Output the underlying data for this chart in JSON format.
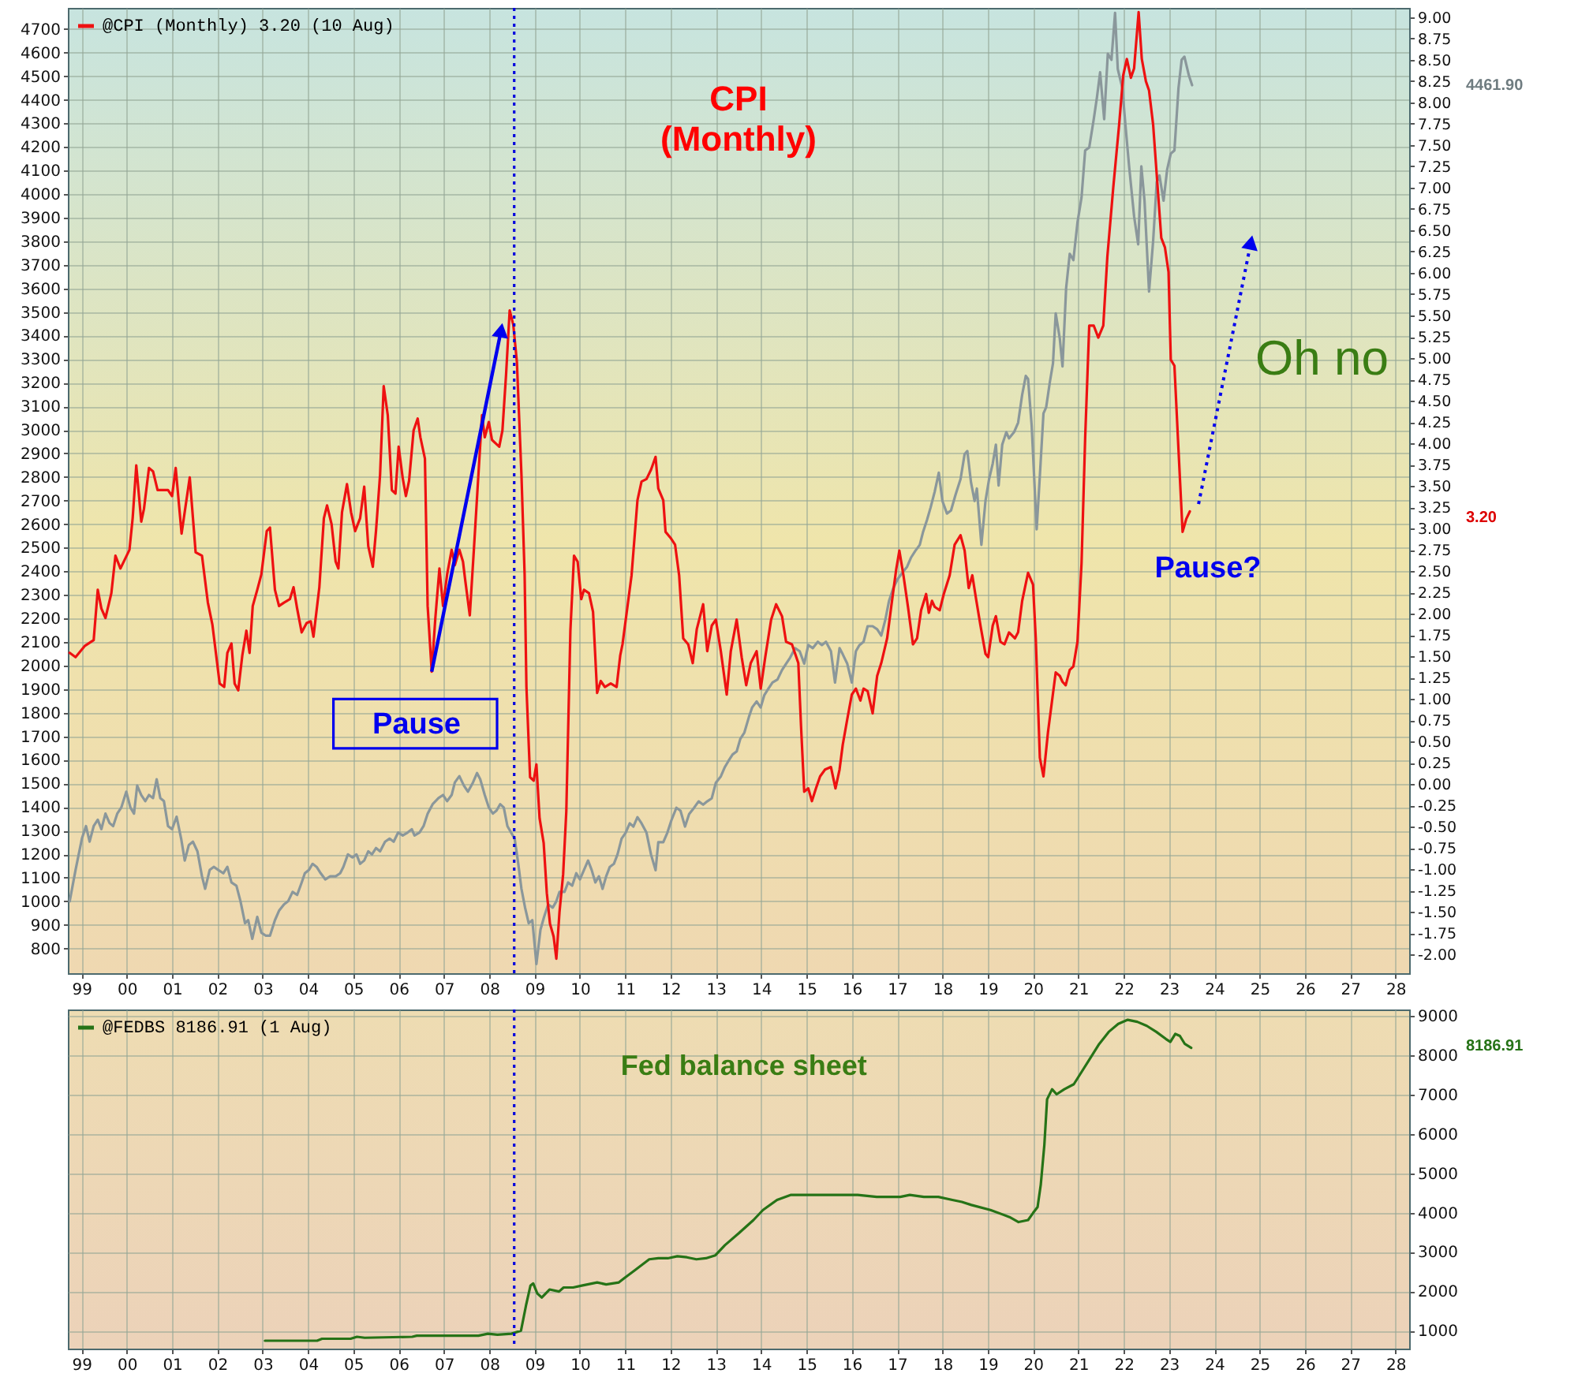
{
  "chart_data": [
    {
      "type": "line",
      "xlim": [
        1998.7,
        2028.3
      ],
      "xticks": [
        {
          "value": 1999,
          "label": "99"
        },
        {
          "value": 2000,
          "label": "00"
        },
        {
          "value": 2001,
          "label": "01"
        },
        {
          "value": 2002,
          "label": "02"
        },
        {
          "value": 2003,
          "label": "03"
        },
        {
          "value": 2004,
          "label": "04"
        },
        {
          "value": 2005,
          "label": "05"
        },
        {
          "value": 2006,
          "label": "06"
        },
        {
          "value": 2007,
          "label": "07"
        },
        {
          "value": 2008,
          "label": "08"
        },
        {
          "value": 2009,
          "label": "09"
        },
        {
          "value": 2010,
          "label": "10"
        },
        {
          "value": 2011,
          "label": "11"
        },
        {
          "value": 2012,
          "label": "12"
        },
        {
          "value": 2013,
          "label": "13"
        },
        {
          "value": 2014,
          "label": "14"
        },
        {
          "value": 2015,
          "label": "15"
        },
        {
          "value": 2016,
          "label": "16"
        },
        {
          "value": 2017,
          "label": "17"
        },
        {
          "value": 2018,
          "label": "18"
        },
        {
          "value": 2019,
          "label": "19"
        },
        {
          "value": 2020,
          "label": "20"
        },
        {
          "value": 2021,
          "label": "21"
        },
        {
          "value": 2022,
          "label": "22"
        },
        {
          "value": 2023,
          "label": "23"
        },
        {
          "value": 2024,
          "label": "24"
        },
        {
          "value": 2025,
          "label": "25"
        },
        {
          "value": 2026,
          "label": "26"
        },
        {
          "value": 2027,
          "label": "27"
        },
        {
          "value": 2028,
          "label": "28"
        }
      ],
      "y2lim": [
        695,
        4790
      ],
      "y2ticks": [
        800,
        900,
        1000,
        1100,
        1200,
        1300,
        1400,
        1500,
        1600,
        1700,
        1800,
        1900,
        2000,
        2100,
        2200,
        2300,
        2400,
        2500,
        2600,
        2700,
        2800,
        2900,
        3000,
        3100,
        3200,
        3300,
        3400,
        3500,
        3600,
        3700,
        3800,
        3900,
        4000,
        4100,
        4200,
        4300,
        4400,
        4500,
        4600,
        4700
      ],
      "ylim": [
        -2.22,
        9.11
      ],
      "yticks": [
        {
          "value": -2,
          "label": "-2.00"
        },
        {
          "value": -1.75,
          "label": "-1.75"
        },
        {
          "value": -1.5,
          "label": "-1.50"
        },
        {
          "value": -1.25,
          "label": "-1.25"
        },
        {
          "value": -1,
          "label": "-1.00"
        },
        {
          "value": -0.75,
          "label": "-0.75"
        },
        {
          "value": -0.5,
          "label": "-0.50"
        },
        {
          "value": -0.25,
          "label": "-0.25"
        },
        {
          "value": 0,
          "label": "0.00"
        },
        {
          "value": 0.25,
          "label": "0.25"
        },
        {
          "value": 0.5,
          "label": "0.50"
        },
        {
          "value": 0.75,
          "label": "0.75"
        },
        {
          "value": 1,
          "label": "1.00"
        },
        {
          "value": 1.25,
          "label": "1.25"
        },
        {
          "value": 1.5,
          "label": "1.50"
        },
        {
          "value": 1.75,
          "label": "1.75"
        },
        {
          "value": 2,
          "label": "2.00"
        },
        {
          "value": 2.25,
          "label": "2.25"
        },
        {
          "value": 2.5,
          "label": "2.50"
        },
        {
          "value": 2.75,
          "label": "2.75"
        },
        {
          "value": 3,
          "label": "3.00"
        },
        {
          "value": 3.25,
          "label": "3.25"
        },
        {
          "value": 3.5,
          "label": "3.50"
        },
        {
          "value": 3.75,
          "label": "3.75"
        },
        {
          "value": 4,
          "label": "4.00"
        },
        {
          "value": 4.25,
          "label": "4.25"
        },
        {
          "value": 4.5,
          "label": "4.50"
        },
        {
          "value": 4.75,
          "label": "4.75"
        },
        {
          "value": 5,
          "label": "5.00"
        },
        {
          "value": 5.25,
          "label": "5.25"
        },
        {
          "value": 5.5,
          "label": "5.50"
        },
        {
          "value": 5.75,
          "label": "5.75"
        },
        {
          "value": 6,
          "label": "6.00"
        },
        {
          "value": 6.25,
          "label": "6.25"
        },
        {
          "value": 6.5,
          "label": "6.50"
        },
        {
          "value": 6.75,
          "label": "6.75"
        },
        {
          "value": 7,
          "label": "7.00"
        },
        {
          "value": 7.25,
          "label": "7.25"
        },
        {
          "value": 7.5,
          "label": "7.50"
        },
        {
          "value": 7.75,
          "label": "7.75"
        },
        {
          "value": 8,
          "label": "8.00"
        },
        {
          "value": 8.25,
          "label": "8.25"
        },
        {
          "value": 8.5,
          "label": "8.50"
        },
        {
          "value": 8.75,
          "label": "8.75"
        },
        {
          "value": 9,
          "label": "9.00"
        }
      ],
      "grid": true,
      "legend": "top left",
      "series": [
        {
          "color": "#8a979b",
          "axis": "y2",
          "x": [
            1998.74,
            1998.87,
            1999.01,
            1999.1,
            1999.18,
            1999.27,
            1999.36,
            1999.44,
            1999.53,
            1999.62,
            1999.7,
            1999.79,
            1999.88,
            1999.99,
            2000.08,
            2000.16,
            2000.23,
            2000.32,
            2000.41,
            2000.49,
            2000.58,
            2000.66,
            2000.74,
            2000.82,
            2000.91,
            2001.0,
            2001.1,
            2001.2,
            2001.28,
            2001.37,
            2001.46,
            2001.56,
            2001.66,
            2001.73,
            2001.83,
            2001.92,
            2002.02,
            2002.13,
            2002.22,
            2002.31,
            2002.42,
            2002.51,
            2002.61,
            2002.68,
            2002.77,
            2002.88,
            2002.97,
            2003.07,
            2003.16,
            2003.27,
            2003.36,
            2003.47,
            2003.56,
            2003.66,
            2003.76,
            2003.86,
            2003.93,
            2004.02,
            2004.1,
            2004.19,
            2004.28,
            2004.38,
            2004.49,
            2004.61,
            2004.71,
            2004.78,
            2004.88,
            2004.98,
            2005.07,
            2005.15,
            2005.24,
            2005.33,
            2005.41,
            2005.5,
            2005.59,
            2005.7,
            2005.8,
            2005.89,
            2005.99,
            2006.09,
            2006.2,
            2006.29,
            2006.35,
            2006.46,
            2006.55,
            2006.64,
            2006.75,
            2006.88,
            2006.98,
            2007.07,
            2007.17,
            2007.24,
            2007.34,
            2007.44,
            2007.53,
            2007.64,
            2007.73,
            2007.8,
            2007.9,
            2007.99,
            2008.08,
            2008.16,
            2008.24,
            2008.32,
            2008.4,
            2008.48,
            2008.56,
            2008.64,
            2008.71,
            2008.79,
            2008.87,
            2008.95,
            2009.04,
            2009.13,
            2009.21,
            2009.3,
            2009.4,
            2009.48,
            2009.55,
            2009.66,
            2009.74,
            2009.83,
            2009.92,
            2010.0,
            2010.09,
            2010.18,
            2010.26,
            2010.34,
            2010.42,
            2010.5,
            2010.58,
            2010.66,
            2010.75,
            2010.83,
            2010.92,
            2011.01,
            2011.1,
            2011.18,
            2011.27,
            2011.36,
            2011.47,
            2011.57,
            2011.67,
            2011.73,
            2011.84,
            2011.93,
            2012.02,
            2012.13,
            2012.22,
            2012.32,
            2012.41,
            2012.52,
            2012.62,
            2012.72,
            2012.81,
            2012.91,
            2013.0,
            2013.11,
            2013.2,
            2013.28,
            2013.37,
            2013.46,
            2013.54,
            2013.63,
            2013.73,
            2013.8,
            2013.9,
            2013.99,
            2014.07,
            2014.16,
            2014.25,
            2014.36,
            2014.46,
            2014.55,
            2014.64,
            2014.75,
            2014.85,
            2014.95,
            2015.04,
            2015.14,
            2015.25,
            2015.34,
            2015.43,
            2015.54,
            2015.63,
            2015.73,
            2015.8,
            2015.9,
            2016.0,
            2016.09,
            2016.17,
            2016.26,
            2016.35,
            2016.46,
            2016.56,
            2016.65,
            2016.74,
            2016.82,
            2016.91,
            2017.01,
            2017.11,
            2017.22,
            2017.31,
            2017.4,
            2017.5,
            2017.57,
            2017.66,
            2017.74,
            2017.83,
            2017.92,
            2018.0,
            2018.1,
            2018.19,
            2018.29,
            2018.4,
            2018.49,
            2018.55,
            2018.63,
            2018.71,
            2018.76,
            2018.86,
            2018.95,
            2019.03,
            2019.11,
            2019.18,
            2019.24,
            2019.32,
            2019.41,
            2019.47,
            2019.58,
            2019.67,
            2019.76,
            2019.84,
            2019.89,
            2019.97,
            2020.08,
            2020.15,
            2020.23,
            2020.29,
            2020.37,
            2020.44,
            2020.5,
            2020.59,
            2020.65,
            2020.73,
            2020.81,
            2020.89,
            2020.98,
            2021.07,
            2021.15,
            2021.24,
            2021.34,
            2021.41,
            2021.48,
            2021.57,
            2021.65,
            2021.73,
            2021.81,
            2021.87,
            2021.97,
            2022.04,
            2022.12,
            2022.23,
            2022.32,
            2022.39,
            2022.46,
            2022.56,
            2022.65,
            2022.73,
            2022.79,
            2022.88,
            2022.96,
            2023.04,
            2023.12,
            2023.21,
            2023.28,
            2023.34,
            2023.44,
            2023.51
          ],
          "values": [
            1000,
            1133,
            1266,
            1319,
            1253,
            1319,
            1346,
            1306,
            1372,
            1332,
            1319,
            1372,
            1398,
            1465,
            1398,
            1372,
            1491,
            1451,
            1425,
            1451,
            1438,
            1518,
            1438,
            1425,
            1319,
            1306,
            1359,
            1266,
            1173,
            1239,
            1253,
            1212,
            1106,
            1053,
            1133,
            1146,
            1133,
            1119,
            1146,
            1080,
            1066,
            1000,
            907,
            920,
            841,
            934,
            867,
            854,
            854,
            920,
            960,
            987,
            1000,
            1040,
            1027,
            1080,
            1119,
            1133,
            1159,
            1146,
            1119,
            1093,
            1106,
            1106,
            1119,
            1146,
            1199,
            1186,
            1199,
            1159,
            1173,
            1212,
            1199,
            1226,
            1212,
            1253,
            1266,
            1253,
            1292,
            1279,
            1292,
            1306,
            1279,
            1292,
            1319,
            1372,
            1412,
            1438,
            1451,
            1425,
            1451,
            1504,
            1531,
            1491,
            1465,
            1504,
            1544,
            1518,
            1451,
            1398,
            1372,
            1385,
            1412,
            1398,
            1319,
            1292,
            1266,
            1159,
            1053,
            973,
            907,
            920,
            734,
            880,
            934,
            987,
            973,
            1000,
            1040,
            1040,
            1080,
            1066,
            1119,
            1093,
            1133,
            1173,
            1133,
            1080,
            1106,
            1053,
            1106,
            1146,
            1159,
            1199,
            1266,
            1291,
            1331,
            1317,
            1357,
            1331,
            1291,
            1198,
            1132,
            1251,
            1251,
            1291,
            1344,
            1397,
            1384,
            1317,
            1370,
            1397,
            1424,
            1410,
            1424,
            1437,
            1503,
            1530,
            1570,
            1596,
            1623,
            1636,
            1689,
            1716,
            1782,
            1822,
            1848,
            1822,
            1875,
            1902,
            1928,
            1941,
            1981,
            2008,
            2034,
            2074,
            2061,
            2008,
            2087,
            2074,
            2101,
            2087,
            2101,
            2061,
            1928,
            2074,
            2048,
            2008,
            1928,
            2061,
            2087,
            2101,
            2167,
            2167,
            2154,
            2127,
            2194,
            2273,
            2326,
            2366,
            2393,
            2419,
            2459,
            2486,
            2512,
            2565,
            2618,
            2671,
            2738,
            2818,
            2698,
            2645,
            2658,
            2725,
            2791,
            2897,
            2910,
            2778,
            2698,
            2751,
            2512,
            2698,
            2791,
            2857,
            2937,
            2764,
            2937,
            2990,
            2964,
            2990,
            3030,
            3149,
            3229,
            3216,
            3017,
            2578,
            2804,
            3070,
            3096,
            3202,
            3282,
            3494,
            3388,
            3269,
            3601,
            3747,
            3720,
            3879,
            3986,
            4185,
            4198,
            4318,
            4410,
            4517,
            4318,
            4596,
            4570,
            4769,
            4530,
            4450,
            4291,
            4118,
            3906,
            3787,
            4118,
            3972,
            3587,
            3800,
            4052,
            4079,
            3972,
            4105,
            4172,
            4185,
            4450,
            4570,
            4583,
            4503,
            4461.9
          ]
        },
        {
          "name": "@CPI (Monthly) 3.20 (10 Aug)",
          "color": "#ee1111",
          "x": [
            1998.74,
            1998.87,
            1999.07,
            1999.27,
            1999.36,
            1999.44,
            1999.53,
            1999.66,
            1999.75,
            1999.86,
            2000.06,
            2000.13,
            2000.21,
            2000.32,
            2000.38,
            2000.49,
            2000.58,
            2000.68,
            2000.78,
            2000.91,
            2001.0,
            2001.08,
            2001.21,
            2001.39,
            2001.52,
            2001.66,
            2001.79,
            2001.89,
            2002.05,
            2002.15,
            2002.22,
            2002.31,
            2002.38,
            2002.46,
            2002.55,
            2002.64,
            2002.71,
            2002.78,
            2002.88,
            2002.97,
            2003.09,
            2003.16,
            2003.27,
            2003.36,
            2003.47,
            2003.6,
            2003.68,
            2003.76,
            2003.86,
            2003.97,
            2004.06,
            2004.12,
            2004.25,
            2004.35,
            2004.42,
            2004.52,
            2004.61,
            2004.67,
            2004.75,
            2004.86,
            2004.95,
            2005.04,
            2005.15,
            2005.24,
            2005.33,
            2005.43,
            2005.5,
            2005.59,
            2005.67,
            2005.76,
            2005.85,
            2005.93,
            2006.0,
            2006.09,
            2006.16,
            2006.23,
            2006.33,
            2006.42,
            2006.48,
            2006.58,
            2006.64,
            2006.73,
            2006.81,
            2006.9,
            2006.98,
            2007.07,
            2007.17,
            2007.24,
            2007.34,
            2007.42,
            2007.47,
            2007.57,
            2007.66,
            2007.76,
            2007.84,
            2007.9,
            2007.99,
            2008.06,
            2008.14,
            2008.22,
            2008.29,
            2008.37,
            2008.45,
            2008.53,
            2008.61,
            2008.71,
            2008.78,
            2008.82,
            2008.9,
            2008.98,
            2009.04,
            2009.11,
            2009.2,
            2009.27,
            2009.34,
            2009.42,
            2009.48,
            2009.55,
            2009.63,
            2009.7,
            2009.79,
            2009.87,
            2009.95,
            2010.03,
            2010.09,
            2010.2,
            2010.29,
            2010.38,
            2010.46,
            2010.55,
            2010.68,
            2010.81,
            2010.89,
            2010.94,
            2011.14,
            2011.27,
            2011.36,
            2011.47,
            2011.57,
            2011.67,
            2011.73,
            2011.84,
            2011.89,
            2012.0,
            2012.1,
            2012.19,
            2012.28,
            2012.39,
            2012.49,
            2012.58,
            2012.72,
            2012.81,
            2012.91,
            2013.0,
            2013.11,
            2013.24,
            2013.33,
            2013.46,
            2013.57,
            2013.67,
            2013.77,
            2013.9,
            2013.99,
            2014.09,
            2014.22,
            2014.33,
            2014.46,
            2014.55,
            2014.68,
            2014.82,
            2014.88,
            2014.95,
            2015.04,
            2015.12,
            2015.21,
            2015.3,
            2015.41,
            2015.54,
            2015.64,
            2015.73,
            2015.8,
            2015.9,
            2016.0,
            2016.09,
            2016.19,
            2016.26,
            2016.35,
            2016.46,
            2016.56,
            2016.65,
            2016.78,
            2016.87,
            2016.98,
            2017.05,
            2017.14,
            2017.24,
            2017.35,
            2017.44,
            2017.53,
            2017.64,
            2017.7,
            2017.77,
            2017.83,
            2017.94,
            2018.03,
            2018.16,
            2018.27,
            2018.4,
            2018.49,
            2018.58,
            2018.66,
            2018.75,
            2018.84,
            2018.95,
            2019.01,
            2019.11,
            2019.18,
            2019.28,
            2019.37,
            2019.47,
            2019.6,
            2019.67,
            2019.76,
            2019.89,
            2020.0,
            2020.06,
            2020.15,
            2020.23,
            2020.33,
            2020.42,
            2020.5,
            2020.59,
            2020.65,
            2020.72,
            2020.81,
            2020.89,
            2020.98,
            2021.07,
            2021.15,
            2021.24,
            2021.34,
            2021.44,
            2021.55,
            2021.64,
            2021.77,
            2021.9,
            2021.99,
            2022.07,
            2022.16,
            2022.23,
            2022.33,
            2022.4,
            2022.49,
            2022.56,
            2022.65,
            2022.75,
            2022.83,
            2022.91,
            2022.99,
            2023.04,
            2023.12,
            2023.21,
            2023.3,
            2023.38,
            2023.46
          ],
          "values": [
            1.54,
            1.49,
            1.62,
            1.69,
            2.28,
            2.06,
            1.95,
            2.24,
            2.68,
            2.53,
            2.75,
            3.12,
            3.74,
            3.08,
            3.23,
            3.71,
            3.67,
            3.45,
            3.45,
            3.45,
            3.38,
            3.71,
            2.94,
            3.6,
            2.72,
            2.68,
            2.13,
            1.87,
            1.18,
            1.14,
            1.54,
            1.65,
            1.18,
            1.1,
            1.51,
            1.8,
            1.54,
            2.09,
            2.28,
            2.46,
            2.97,
            3.01,
            2.28,
            2.09,
            2.13,
            2.17,
            2.31,
            2.06,
            1.78,
            1.89,
            1.91,
            1.73,
            2.31,
            3.12,
            3.27,
            3.05,
            2.61,
            2.53,
            3.19,
            3.52,
            3.19,
            2.97,
            3.12,
            3.49,
            2.79,
            2.55,
            2.97,
            3.63,
            4.67,
            4.33,
            3.45,
            3.41,
            3.96,
            3.59,
            3.38,
            3.56,
            4.15,
            4.29,
            4.07,
            3.82,
            2.09,
            1.32,
            1.95,
            2.53,
            2.09,
            2.46,
            2.75,
            2.57,
            2.75,
            2.61,
            2.39,
            1.98,
            2.75,
            3.63,
            4.33,
            4.07,
            4.25,
            4.04,
            4.0,
            3.96,
            4.15,
            4.8,
            5.56,
            5.39,
            4.95,
            3.63,
            2.46,
            1.14,
            0.08,
            0.04,
            0.23,
            -0.4,
            -0.69,
            -1.28,
            -1.64,
            -1.79,
            -2.05,
            -1.5,
            -1.06,
            -0.32,
            1.8,
            2.68,
            2.61,
            2.17,
            2.28,
            2.24,
            2.02,
            1.07,
            1.21,
            1.14,
            1.18,
            1.14,
            1.51,
            1.64,
            2.45,
            3.33,
            3.55,
            3.58,
            3.69,
            3.84,
            3.47,
            3.33,
            2.96,
            2.89,
            2.81,
            2.45,
            1.71,
            1.64,
            1.42,
            1.82,
            2.11,
            1.56,
            1.86,
            1.93,
            1.56,
            1.05,
            1.56,
            1.93,
            1.49,
            1.16,
            1.42,
            1.56,
            1.12,
            1.49,
            1.93,
            2.11,
            1.97,
            1.67,
            1.64,
            1.42,
            0.68,
            -0.09,
            -0.05,
            -0.2,
            -0.05,
            0.09,
            0.17,
            0.2,
            -0.05,
            0.17,
            0.46,
            0.76,
            1.05,
            1.12,
            0.98,
            1.12,
            1.09,
            0.83,
            1.27,
            1.42,
            1.71,
            2.08,
            2.52,
            2.74,
            2.45,
            2.08,
            1.64,
            1.71,
            2.04,
            2.23,
            2.01,
            2.15,
            2.08,
            2.04,
            2.23,
            2.45,
            2.81,
            2.92,
            2.74,
            2.3,
            2.45,
            2.15,
            1.86,
            1.53,
            1.49,
            1.86,
            1.97,
            1.67,
            1.64,
            1.78,
            1.71,
            1.78,
            2.15,
            2.48,
            2.34,
            1.71,
            0.31,
            0.09,
            0.61,
            0.98,
            1.31,
            1.27,
            1.2,
            1.16,
            1.34,
            1.38,
            1.67,
            2.59,
            4.06,
            5.38,
            5.38,
            5.24,
            5.38,
            6.19,
            7.0,
            7.74,
            8.32,
            8.51,
            8.29,
            8.4,
            9.06,
            8.51,
            8.25,
            8.14,
            7.74,
            7.0,
            6.41,
            6.3,
            6.01,
            4.98,
            4.91,
            3.92,
            2.96,
            3.11,
            3.2
          ]
        }
      ],
      "ref_lines": [
        {
          "axis": "x",
          "value": 2008.55,
          "color": "#0000dd",
          "line_style": "dotted"
        }
      ],
      "annotations": [
        "CPI\n(Monthly)",
        {
          "text": "Pause",
          "x": 2006.73,
          "y": 1.32
        },
        "Pause?",
        "Oh no",
        "4461.90",
        "3.20"
      ]
    },
    {
      "type": "line",
      "xlim": [
        1998.7,
        2028.3
      ],
      "xticks": [
        {
          "value": 1999,
          "label": "99"
        },
        {
          "value": 2000,
          "label": "00"
        },
        {
          "value": 2001,
          "label": "01"
        },
        {
          "value": 2002,
          "label": "02"
        },
        {
          "value": 2003,
          "label": "03"
        },
        {
          "value": 2004,
          "label": "04"
        },
        {
          "value": 2005,
          "label": "05"
        },
        {
          "value": 2006,
          "label": "06"
        },
        {
          "value": 2007,
          "label": "07"
        },
        {
          "value": 2008,
          "label": "08"
        },
        {
          "value": 2009,
          "label": "09"
        },
        {
          "value": 2010,
          "label": "10"
        },
        {
          "value": 2011,
          "label": "11"
        },
        {
          "value": 2012,
          "label": "12"
        },
        {
          "value": 2013,
          "label": "13"
        },
        {
          "value": 2014,
          "label": "14"
        },
        {
          "value": 2015,
          "label": "15"
        },
        {
          "value": 2016,
          "label": "16"
        },
        {
          "value": 2017,
          "label": "17"
        },
        {
          "value": 2018,
          "label": "18"
        },
        {
          "value": 2019,
          "label": "19"
        },
        {
          "value": 2020,
          "label": "20"
        },
        {
          "value": 2021,
          "label": "21"
        },
        {
          "value": 2022,
          "label": "22"
        },
        {
          "value": 2023,
          "label": "23"
        },
        {
          "value": 2024,
          "label": "24"
        },
        {
          "value": 2025,
          "label": "25"
        },
        {
          "value": 2026,
          "label": "26"
        },
        {
          "value": 2027,
          "label": "27"
        },
        {
          "value": 2028,
          "label": "28"
        }
      ],
      "ylim": [
        545,
        9160
      ],
      "yticks": [
        1000,
        2000,
        3000,
        4000,
        5000,
        6000,
        7000,
        8000,
        9000
      ],
      "grid": true,
      "legend": "top left",
      "series": [
        {
          "name": "@FEDBS 8186.91 (1 Aug)",
          "color": "#267317",
          "x": [
            2003.05,
            2004.2,
            2004.31,
            2004.94,
            2005.08,
            2005.25,
            2006.3,
            2006.4,
            2007.76,
            2007.97,
            2008.18,
            2008.49,
            2008.7,
            2008.81,
            2008.91,
            2008.97,
            2009.06,
            2009.16,
            2009.33,
            2009.54,
            2009.64,
            2009.85,
            2010.06,
            2010.38,
            2010.58,
            2010.86,
            2011.0,
            2011.21,
            2011.53,
            2011.73,
            2011.94,
            2012.15,
            2012.36,
            2012.57,
            2012.78,
            2012.99,
            2013.2,
            2013.51,
            2013.83,
            2014.04,
            2014.35,
            2014.66,
            2014.87,
            2015.29,
            2015.71,
            2016.13,
            2016.34,
            2016.55,
            2017.07,
            2017.28,
            2017.59,
            2017.91,
            2018.22,
            2018.43,
            2018.64,
            2019.06,
            2019.48,
            2019.68,
            2019.89,
            2020.0,
            2020.1,
            2020.17,
            2020.25,
            2020.31,
            2020.42,
            2020.52,
            2020.69,
            2020.9,
            2021.04,
            2021.25,
            2021.46,
            2021.67,
            2021.88,
            2022.09,
            2022.3,
            2022.51,
            2022.72,
            2022.93,
            2023.03,
            2023.14,
            2023.24,
            2023.35,
            2023.49
          ],
          "values": [
            745,
            745,
            795,
            795,
            846,
            820,
            846,
            872,
            872,
            923,
            897,
            923,
            1000,
            1638,
            2149,
            2200,
            1945,
            1843,
            2047,
            1996,
            2098,
            2098,
            2149,
            2226,
            2175,
            2226,
            2354,
            2533,
            2814,
            2840,
            2840,
            2891,
            2865,
            2814,
            2840,
            2916,
            3172,
            3479,
            3811,
            4066,
            4322,
            4450,
            4450,
            4450,
            4450,
            4450,
            4424,
            4399,
            4399,
            4450,
            4399,
            4399,
            4322,
            4271,
            4194,
            4066,
            3888,
            3760,
            3811,
            3990,
            4143,
            4705,
            5728,
            6878,
            7134,
            7006,
            7134,
            7262,
            7517,
            7901,
            8284,
            8591,
            8795,
            8898,
            8847,
            8744,
            8591,
            8412,
            8335,
            8540,
            8489,
            8284,
            8186.91
          ]
        }
      ],
      "ref_lines": [
        {
          "axis": "x",
          "value": 2008.55,
          "color": "#0000dd",
          "line_style": "dotted"
        }
      ],
      "annotations": [
        "Fed balance sheet",
        "8186.91"
      ]
    }
  ]
}
